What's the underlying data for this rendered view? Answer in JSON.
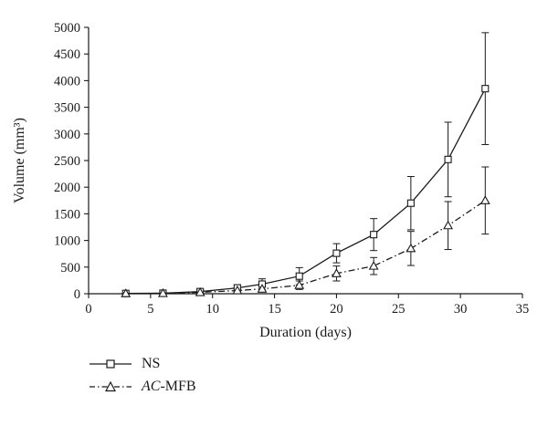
{
  "chart_data": {
    "type": "line",
    "title": "",
    "xlabel": "Duration (days)",
    "ylabel": "Volume (mm³)",
    "xlim": [
      0,
      35
    ],
    "ylim": [
      0,
      5000
    ],
    "xticks": [
      0,
      5,
      10,
      15,
      20,
      25,
      30,
      35
    ],
    "yticks": [
      0,
      500,
      1000,
      1500,
      2000,
      2500,
      3000,
      3500,
      4000,
      4500,
      5000
    ],
    "grid": false,
    "legend_position": "below-left",
    "line_color": "#1a1a1a",
    "x": [
      3,
      6,
      9,
      12,
      14,
      17,
      20,
      23,
      26,
      29,
      32
    ],
    "series": [
      {
        "name": "NS",
        "marker": "square",
        "line_style": "solid",
        "values": [
          5,
          10,
          40,
          110,
          180,
          330,
          760,
          1110,
          1700,
          2520,
          3850
        ],
        "errors": [
          5,
          8,
          30,
          60,
          100,
          160,
          180,
          300,
          500,
          700,
          1050
        ]
      },
      {
        "name": "AC-MFB",
        "name_italic_part": "AC",
        "name_rest": "-MFB",
        "marker": "triangle",
        "line_style": "dashdot",
        "values": [
          5,
          8,
          25,
          60,
          90,
          160,
          380,
          520,
          850,
          1280,
          1750
        ],
        "errors": [
          4,
          6,
          20,
          40,
          60,
          80,
          140,
          160,
          320,
          450,
          630
        ]
      }
    ]
  }
}
